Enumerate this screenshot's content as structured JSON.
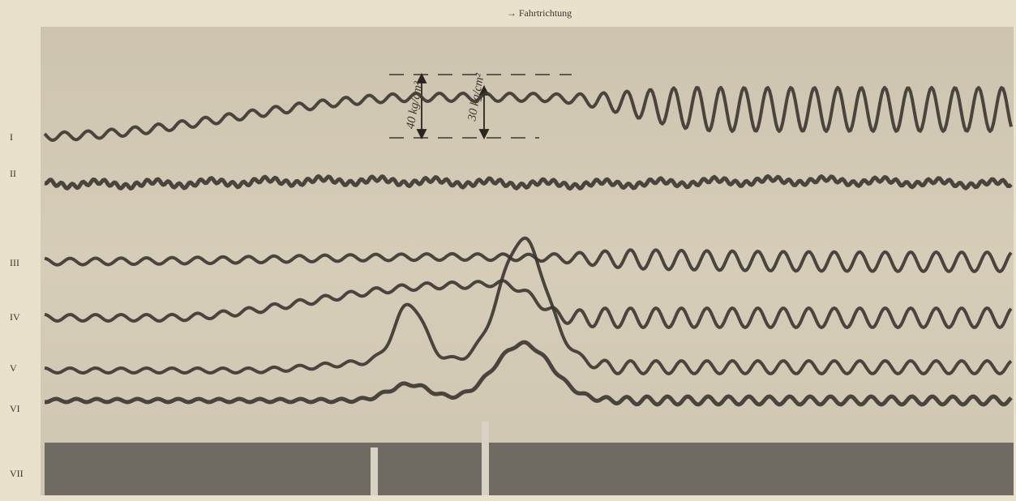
{
  "caption": "→ Fahrtrichtung",
  "traces": [
    {
      "label": "I"
    },
    {
      "label": "II"
    },
    {
      "label": "III"
    },
    {
      "label": "IV"
    },
    {
      "label": "V"
    },
    {
      "label": "VI"
    },
    {
      "label": "VII"
    }
  ],
  "annotations": [
    "40 kg/cm²",
    "30 kg/cm²"
  ]
}
